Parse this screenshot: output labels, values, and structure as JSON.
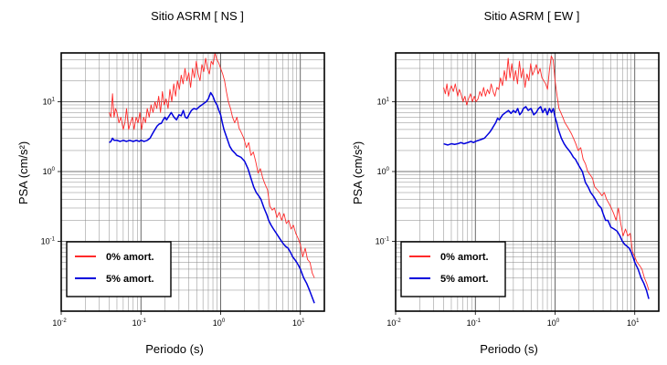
{
  "chart_data": [
    {
      "type": "line",
      "title": "Sitio ASRM [ NS ]",
      "xlabel": "Periodo (s)",
      "ylabel": "PSA (cm/s²)",
      "xscale": "log",
      "yscale": "log",
      "xlim": [
        0.01,
        20
      ],
      "ylim": [
        0.01,
        50
      ],
      "x_ticks": [
        {
          "value": 0.01,
          "base": "10",
          "exp": "-2"
        },
        {
          "value": 0.1,
          "base": "10",
          "exp": "-1"
        },
        {
          "value": 1,
          "base": "10",
          "exp": "0"
        },
        {
          "value": 10,
          "base": "10",
          "exp": "1"
        }
      ],
      "y_ticks": [
        {
          "value": 0.1,
          "base": "10",
          "exp": "-1"
        },
        {
          "value": 1,
          "base": "10",
          "exp": "0"
        },
        {
          "value": 10,
          "base": "10",
          "exp": "1"
        }
      ],
      "grid": true,
      "legend_position": "bottom-left",
      "series": [
        {
          "name": "0% amort.",
          "color": "#ff2a2a",
          "x": [
            0.04,
            0.042,
            0.044,
            0.046,
            0.048,
            0.05,
            0.053,
            0.056,
            0.06,
            0.063,
            0.066,
            0.07,
            0.074,
            0.078,
            0.082,
            0.087,
            0.092,
            0.097,
            0.102,
            0.108,
            0.114,
            0.12,
            0.127,
            0.134,
            0.142,
            0.15,
            0.158,
            0.167,
            0.176,
            0.186,
            0.196,
            0.207,
            0.219,
            0.231,
            0.244,
            0.258,
            0.272,
            0.287,
            0.303,
            0.32,
            0.338,
            0.357,
            0.377,
            0.398,
            0.42,
            0.444,
            0.469,
            0.495,
            0.522,
            0.551,
            0.582,
            0.614,
            0.648,
            0.684,
            0.722,
            0.762,
            0.804,
            0.849,
            0.896,
            0.946,
            1.0,
            1.06,
            1.12,
            1.18,
            1.25,
            1.33,
            1.41,
            1.5,
            1.6,
            1.7,
            1.82,
            1.95,
            2.1,
            2.25,
            2.4,
            2.57,
            2.75,
            2.95,
            3.15,
            3.38,
            3.62,
            3.87,
            4.14,
            4.43,
            4.74,
            5.08,
            5.44,
            5.82,
            6.23,
            6.67,
            7.14,
            7.64,
            8.18,
            8.76,
            9.38,
            10.0,
            10.7,
            11.5,
            12.3,
            13.2,
            14.1,
            15.0
          ],
          "y": [
            7,
            6,
            13,
            6,
            8,
            7,
            5,
            6,
            4,
            5,
            8,
            4,
            5,
            6,
            4,
            6,
            5,
            7,
            4,
            6,
            5,
            8,
            6,
            9,
            7,
            10,
            8,
            12,
            7,
            14,
            9,
            11,
            8,
            15,
            10,
            18,
            12,
            20,
            15,
            24,
            18,
            30,
            20,
            26,
            16,
            30,
            22,
            38,
            25,
            20,
            34,
            27,
            42,
            30,
            25,
            38,
            34,
            50,
            40,
            36,
            30,
            25,
            20,
            14,
            10,
            8,
            6,
            5,
            6,
            4.2,
            3.6,
            3.0,
            2.2,
            2.6,
            1.7,
            1.9,
            1.4,
            0.95,
            1.1,
            0.8,
            0.65,
            0.55,
            0.32,
            0.28,
            0.3,
            0.22,
            0.26,
            0.2,
            0.25,
            0.18,
            0.2,
            0.15,
            0.17,
            0.13,
            0.11,
            0.09,
            0.06,
            0.08,
            0.055,
            0.05,
            0.035,
            0.03
          ]
        },
        {
          "name": "5% amort.",
          "color": "#0000dd",
          "x": [
            0.04,
            0.042,
            0.044,
            0.046,
            0.05,
            0.055,
            0.06,
            0.066,
            0.072,
            0.08,
            0.088,
            0.095,
            0.1,
            0.11,
            0.12,
            0.13,
            0.14,
            0.15,
            0.16,
            0.17,
            0.18,
            0.19,
            0.2,
            0.21,
            0.22,
            0.24,
            0.26,
            0.28,
            0.3,
            0.32,
            0.34,
            0.36,
            0.38,
            0.4,
            0.43,
            0.46,
            0.5,
            0.54,
            0.58,
            0.62,
            0.66,
            0.7,
            0.75,
            0.8,
            0.85,
            0.9,
            0.95,
            1.0,
            1.05,
            1.1,
            1.2,
            1.3,
            1.4,
            1.5,
            1.6,
            1.7,
            1.8,
            2.0,
            2.2,
            2.4,
            2.6,
            2.8,
            3.0,
            3.2,
            3.5,
            3.8,
            4.0,
            4.3,
            4.6,
            5.0,
            5.5,
            6.0,
            6.5,
            7.0,
            7.5,
            8.0,
            8.5,
            9.0,
            9.5,
            10.0,
            11.0,
            12.0,
            13.0,
            14.0,
            15.0
          ],
          "y": [
            2.6,
            2.7,
            3.0,
            2.8,
            2.8,
            2.7,
            2.8,
            2.7,
            2.8,
            2.7,
            2.8,
            2.7,
            2.8,
            2.7,
            2.8,
            3.0,
            3.5,
            4.0,
            4.5,
            4.8,
            4.9,
            5.5,
            6.0,
            5.5,
            6.0,
            7.0,
            6.0,
            5.5,
            6.5,
            6.3,
            7.5,
            6.0,
            5.8,
            6.5,
            7.5,
            8.0,
            7.8,
            8.5,
            9.0,
            9.5,
            10.0,
            11.0,
            13.5,
            12.0,
            10.0,
            9.0,
            7.5,
            6.5,
            5.0,
            4.0,
            3.0,
            2.3,
            2.0,
            1.85,
            1.7,
            1.65,
            1.6,
            1.4,
            1.1,
            0.8,
            0.6,
            0.5,
            0.45,
            0.4,
            0.3,
            0.24,
            0.2,
            0.17,
            0.15,
            0.13,
            0.11,
            0.095,
            0.085,
            0.08,
            0.07,
            0.06,
            0.055,
            0.05,
            0.045,
            0.04,
            0.03,
            0.025,
            0.02,
            0.016,
            0.013
          ]
        }
      ]
    },
    {
      "type": "line",
      "title": "Sitio ASRM [ EW ]",
      "xlabel": "Periodo (s)",
      "ylabel": "PSA (cm/s²)",
      "xscale": "log",
      "yscale": "log",
      "xlim": [
        0.01,
        20
      ],
      "ylim": [
        0.01,
        50
      ],
      "x_ticks": [
        {
          "value": 0.01,
          "base": "10",
          "exp": "-2"
        },
        {
          "value": 0.1,
          "base": "10",
          "exp": "-1"
        },
        {
          "value": 1,
          "base": "10",
          "exp": "0"
        },
        {
          "value": 10,
          "base": "10",
          "exp": "1"
        }
      ],
      "y_ticks": [
        {
          "value": 0.1,
          "base": "10",
          "exp": "-1"
        },
        {
          "value": 1,
          "base": "10",
          "exp": "0"
        },
        {
          "value": 10,
          "base": "10",
          "exp": "1"
        }
      ],
      "grid": true,
      "legend_position": "bottom-left",
      "series": [
        {
          "name": "0% amort.",
          "color": "#ff2a2a",
          "x": [
            0.04,
            0.042,
            0.044,
            0.046,
            0.048,
            0.05,
            0.053,
            0.056,
            0.06,
            0.063,
            0.066,
            0.07,
            0.074,
            0.078,
            0.082,
            0.087,
            0.092,
            0.097,
            0.102,
            0.108,
            0.114,
            0.12,
            0.127,
            0.134,
            0.142,
            0.15,
            0.158,
            0.167,
            0.176,
            0.186,
            0.196,
            0.207,
            0.219,
            0.231,
            0.244,
            0.258,
            0.272,
            0.287,
            0.303,
            0.32,
            0.338,
            0.357,
            0.377,
            0.398,
            0.42,
            0.444,
            0.469,
            0.495,
            0.522,
            0.551,
            0.582,
            0.614,
            0.648,
            0.684,
            0.722,
            0.762,
            0.804,
            0.849,
            0.896,
            0.946,
            1.0,
            1.06,
            1.12,
            1.18,
            1.25,
            1.33,
            1.41,
            1.5,
            1.6,
            1.7,
            1.82,
            1.95,
            2.1,
            2.25,
            2.4,
            2.57,
            2.75,
            2.95,
            3.15,
            3.38,
            3.62,
            3.87,
            4.14,
            4.43,
            4.74,
            5.08,
            5.44,
            5.82,
            6.23,
            6.67,
            7.14,
            7.64,
            8.18,
            8.76,
            9.38,
            10.0,
            10.7,
            11.5,
            12.3,
            13.2,
            14.1,
            15.0
          ],
          "y": [
            16,
            13,
            18,
            12,
            15,
            17,
            14,
            18,
            12,
            15,
            13,
            10,
            12,
            9,
            11,
            13,
            10,
            12,
            10,
            11,
            14,
            12,
            16,
            12,
            15,
            13,
            18,
            14,
            12,
            16,
            15,
            22,
            17,
            28,
            20,
            42,
            22,
            35,
            20,
            28,
            18,
            38,
            22,
            30,
            16,
            25,
            20,
            35,
            24,
            28,
            34,
            25,
            30,
            22,
            20,
            18,
            15,
            28,
            45,
            40,
            20,
            12,
            8,
            7,
            6,
            5,
            4.5,
            4,
            3.5,
            3,
            2.5,
            2,
            2.2,
            1.5,
            1.3,
            1.0,
            0.9,
            0.8,
            0.6,
            0.55,
            0.5,
            0.45,
            0.5,
            0.4,
            0.35,
            0.3,
            0.25,
            0.2,
            0.3,
            0.18,
            0.12,
            0.15,
            0.12,
            0.13,
            0.07,
            0.06,
            0.05,
            0.045,
            0.04,
            0.03,
            0.025,
            0.02
          ]
        },
        {
          "name": "5% amort.",
          "color": "#0000dd",
          "x": [
            0.04,
            0.045,
            0.05,
            0.055,
            0.06,
            0.066,
            0.072,
            0.08,
            0.088,
            0.095,
            0.1,
            0.11,
            0.12,
            0.13,
            0.14,
            0.15,
            0.16,
            0.17,
            0.18,
            0.19,
            0.2,
            0.21,
            0.22,
            0.24,
            0.26,
            0.28,
            0.3,
            0.32,
            0.34,
            0.36,
            0.38,
            0.4,
            0.43,
            0.46,
            0.5,
            0.54,
            0.58,
            0.62,
            0.66,
            0.7,
            0.75,
            0.8,
            0.85,
            0.9,
            0.95,
            1.0,
            1.05,
            1.1,
            1.2,
            1.3,
            1.4,
            1.5,
            1.6,
            1.7,
            1.8,
            2.0,
            2.2,
            2.4,
            2.6,
            2.8,
            3.0,
            3.2,
            3.5,
            3.8,
            4.0,
            4.3,
            4.6,
            5.0,
            5.5,
            6.0,
            6.5,
            7.0,
            7.5,
            8.0,
            8.5,
            9.0,
            9.5,
            10.0,
            11.0,
            12.0,
            13.0,
            14.0,
            15.0
          ],
          "y": [
            2.5,
            2.4,
            2.5,
            2.45,
            2.5,
            2.6,
            2.5,
            2.6,
            2.7,
            2.6,
            2.7,
            2.8,
            2.9,
            3.0,
            3.3,
            3.6,
            4.0,
            4.5,
            5.0,
            5.8,
            5.5,
            6.0,
            6.5,
            7.0,
            7.5,
            6.8,
            7.5,
            7.0,
            8.0,
            6.5,
            7.0,
            8.0,
            8.5,
            7.5,
            8.0,
            6.5,
            7.0,
            8.0,
            8.5,
            7.0,
            8.0,
            6.5,
            8.0,
            7.0,
            8.0,
            6.0,
            5.0,
            4.0,
            3.0,
            2.5,
            2.2,
            2.0,
            1.8,
            1.6,
            1.5,
            1.2,
            1.0,
            0.7,
            0.6,
            0.5,
            0.45,
            0.4,
            0.33,
            0.3,
            0.25,
            0.2,
            0.2,
            0.16,
            0.15,
            0.14,
            0.12,
            0.1,
            0.09,
            0.085,
            0.08,
            0.07,
            0.06,
            0.05,
            0.04,
            0.03,
            0.025,
            0.02,
            0.015
          ]
        }
      ]
    }
  ]
}
